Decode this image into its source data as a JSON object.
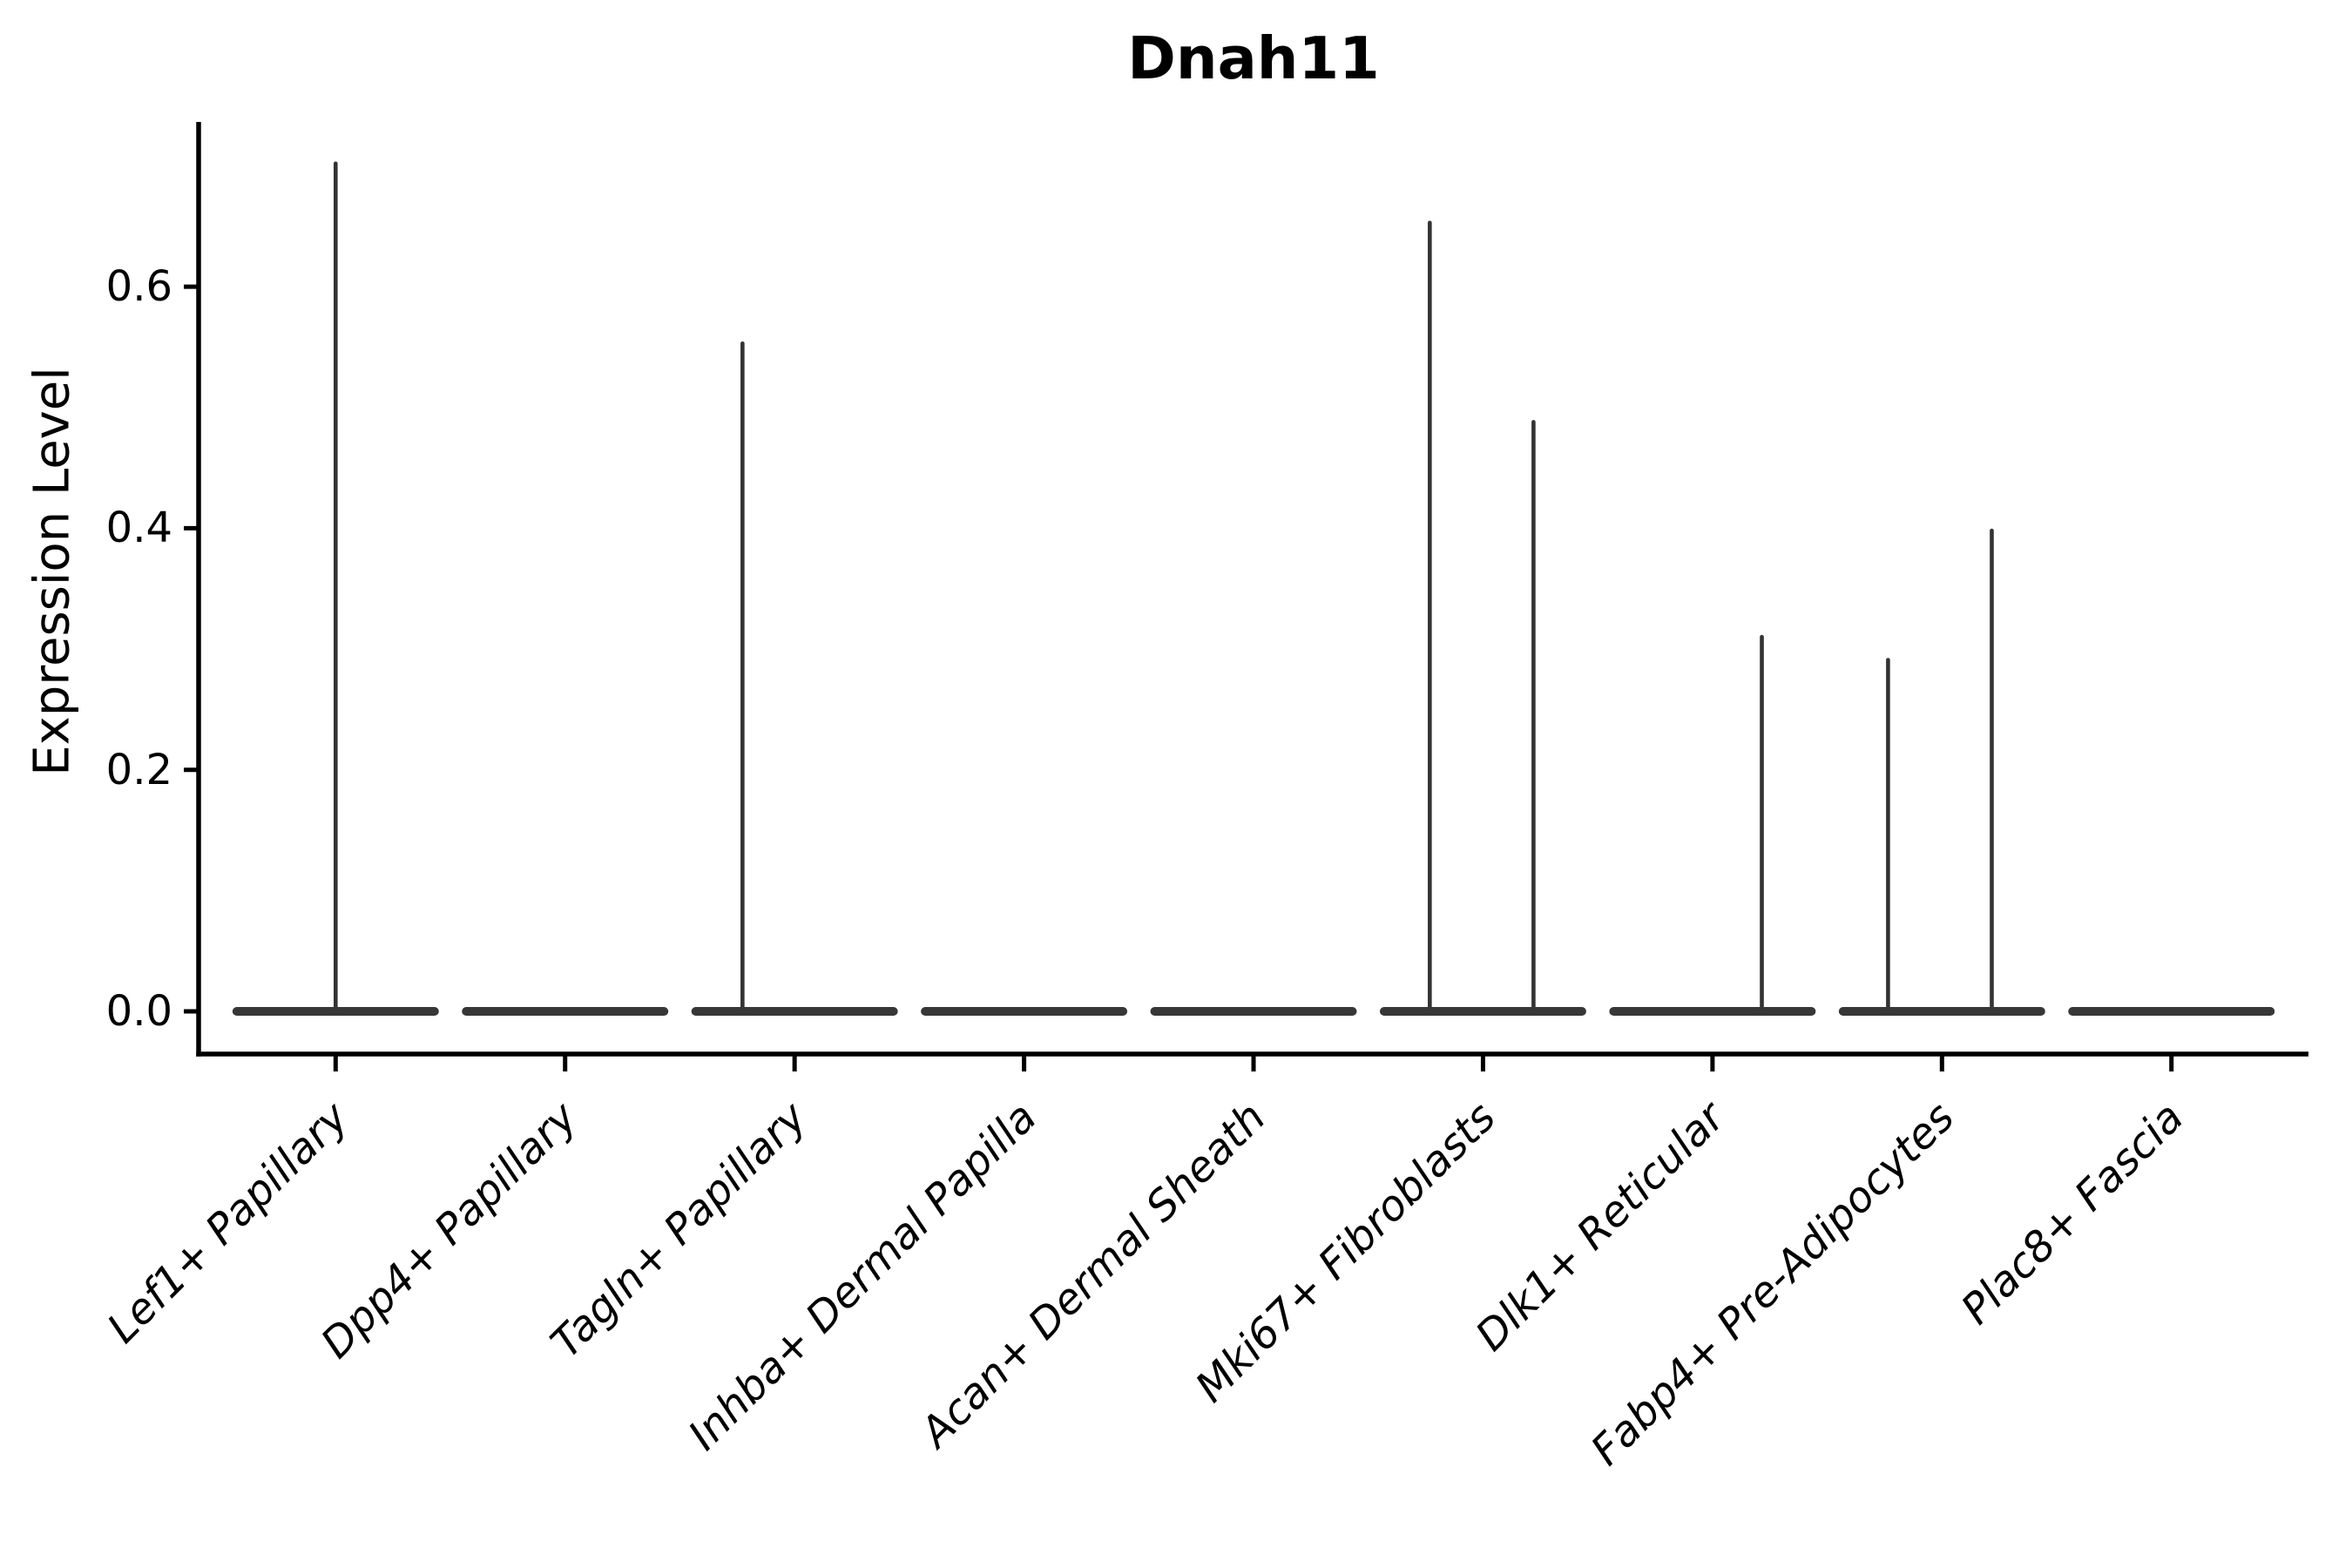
{
  "colors": {
    "background": "#ffffff",
    "violin_body": "#373737",
    "violin_spike": "#333333",
    "axis": "#000000",
    "text": "#000000"
  },
  "chart_data": {
    "type": "violin",
    "title": "Dnah11",
    "xlabel": "",
    "ylabel": "Expression Level",
    "ylim": [
      -0.035,
      0.737
    ],
    "grid": false,
    "legend": null,
    "yticks": {
      "values": [
        0.0,
        0.2,
        0.4,
        0.6
      ],
      "labels": [
        "0.0",
        "0.2",
        "0.4",
        "0.6"
      ]
    },
    "categories": [
      "Lef1+ Papillary",
      "Dpp4+ Papillary",
      "Tagln+ Papillary",
      "Inhba+ Dermal Papilla",
      "Acan+ Dermal Sheath",
      "Mki67+ Fibroblasts",
      "Dlk1+ Reticular",
      "Fabp4+ Pre-Adipocytes",
      "Plac8+ Fascia"
    ],
    "violins": [
      {
        "category": "Lef1+ Papillary",
        "body_halfwidth": 0.45,
        "body_value": 0.0,
        "spikes": [
          {
            "offset": 0.0,
            "value": 0.702
          }
        ]
      },
      {
        "category": "Dpp4+ Papillary",
        "body_halfwidth": 0.45,
        "body_value": 0.0,
        "spikes": []
      },
      {
        "category": "Tagln+ Papillary",
        "body_halfwidth": 0.45,
        "body_value": 0.0,
        "spikes": [
          {
            "offset": -0.227,
            "value": 0.553
          }
        ]
      },
      {
        "category": "Inhba+ Dermal Papilla",
        "body_halfwidth": 0.45,
        "body_value": 0.0,
        "spikes": []
      },
      {
        "category": "Acan+ Dermal Sheath",
        "body_halfwidth": 0.45,
        "body_value": 0.0,
        "spikes": []
      },
      {
        "category": "Mki67+ Fibroblasts",
        "body_halfwidth": 0.45,
        "body_value": 0.0,
        "spikes": [
          {
            "offset": -0.232,
            "value": 0.653
          },
          {
            "offset": 0.22,
            "value": 0.488
          }
        ]
      },
      {
        "category": "Dlk1+ Reticular",
        "body_halfwidth": 0.45,
        "body_value": 0.0,
        "spikes": [
          {
            "offset": 0.215,
            "value": 0.31
          }
        ]
      },
      {
        "category": "Fabp4+ Pre-Adipocytes",
        "body_halfwidth": 0.45,
        "body_value": 0.0,
        "spikes": [
          {
            "offset": -0.235,
            "value": 0.291
          },
          {
            "offset": 0.217,
            "value": 0.398
          }
        ]
      },
      {
        "category": "Plac8+ Fascia",
        "body_halfwidth": 0.45,
        "body_value": 0.0,
        "spikes": []
      }
    ]
  }
}
